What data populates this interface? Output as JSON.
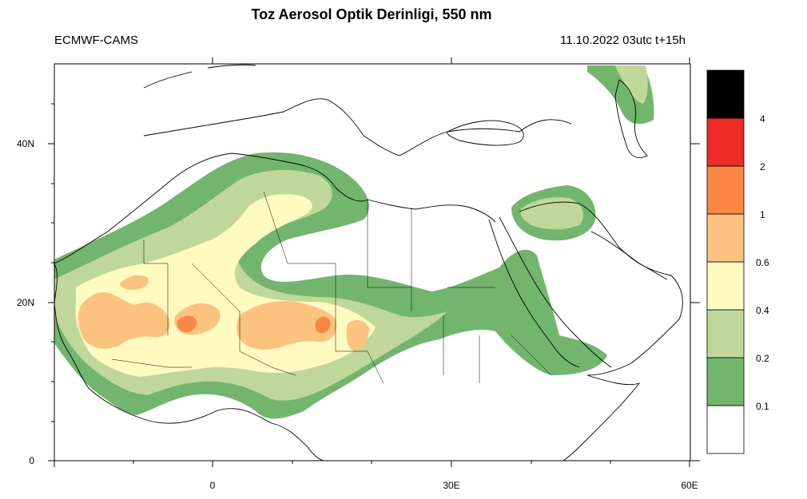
{
  "title": "Toz Aerosol Optik Derinligi, 550 nm",
  "source": "ECMWF-CAMS",
  "datetime": "11.10.2022 03utc t+15h",
  "axes": {
    "x_ticks": [
      "0",
      "30E",
      "60E"
    ],
    "y_ticks": [
      "40N",
      "20N",
      "0"
    ],
    "lon_range": [
      -20,
      60
    ],
    "lat_range": [
      0,
      50
    ]
  },
  "colorbar": {
    "levels": [
      "0.1",
      "0.2",
      "0.4",
      "0.6",
      "1",
      "2",
      "4"
    ],
    "colors": [
      "#ffffff",
      "#72b66e",
      "#bfd899",
      "#fffac0",
      "#fcc27e",
      "#f98642",
      "#ee2b24",
      "#000000"
    ]
  }
}
